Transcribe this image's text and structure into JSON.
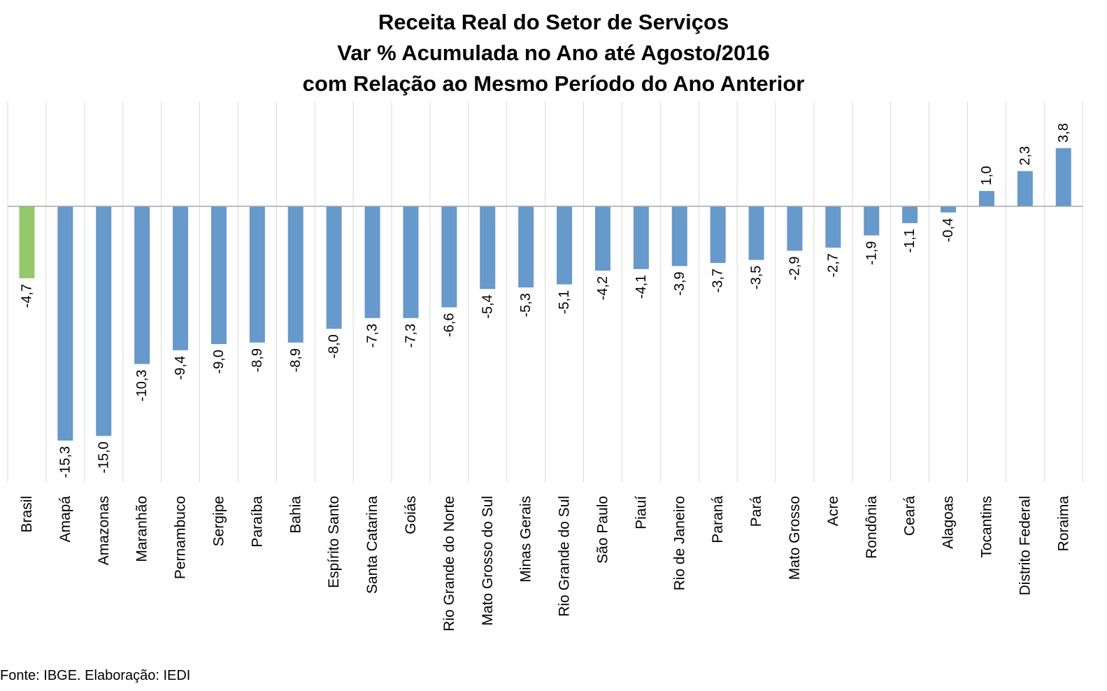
{
  "chart_data": {
    "type": "bar",
    "title": [
      "Receita Real do Setor de Serviços",
      "Var % Acumulada no Ano até Agosto/2016",
      "com Relação ao Mesmo Período do Ano Anterior"
    ],
    "xlabel": "",
    "ylabel": "",
    "ylim": [
      -18.0,
      6.8
    ],
    "grid": "vertical separators between categories",
    "legend": "none",
    "categories": [
      "Brasil",
      "Amapá",
      "Amazonas",
      "Maranhão",
      "Pernambuco",
      "Sergipe",
      "Paraíba",
      "Bahia",
      "Espírito Santo",
      "Santa Catarina",
      "Goiás",
      "Rio Grande do Norte",
      "Mato Grosso do Sul",
      "Minas Gerais",
      "Rio Grande do Sul",
      "São Paulo",
      "Piauí",
      "Rio de Janeiro",
      "Paraná",
      "Pará",
      "Mato Grosso",
      "Acre",
      "Rondônia",
      "Ceará",
      "Alagoas",
      "Tocantins",
      "Distrito Federal",
      "Roraima"
    ],
    "values": [
      -4.7,
      -15.3,
      -15.0,
      -10.3,
      -9.4,
      -9.0,
      -8.9,
      -8.9,
      -8.0,
      -7.3,
      -7.3,
      -6.6,
      -5.4,
      -5.3,
      -5.1,
      -4.2,
      -4.1,
      -3.9,
      -3.7,
      -3.5,
      -2.9,
      -2.7,
      -1.9,
      -1.1,
      -0.4,
      1.0,
      2.3,
      3.8
    ],
    "data_labels": [
      "-4,7",
      "-15,3",
      "-15,0",
      "-10,3",
      "-9,4",
      "-9,0",
      "-8,9",
      "-8,9",
      "-8,0",
      "-7,3",
      "-7,3",
      "-6,6",
      "-5,4",
      "-5,3",
      "-5,1",
      "-4,2",
      "-4,1",
      "-3,9",
      "-3,7",
      "-3,5",
      "-2,9",
      "-2,7",
      "-1,9",
      "-1,1",
      "-0,4",
      "1,0",
      "2,3",
      "3,8"
    ],
    "highlight_index": 0,
    "colors": {
      "bar": "#6699CC",
      "highlight_bar": "#92C96A",
      "axis": "#A6A6A6",
      "separator": "#D9D9D9"
    }
  },
  "source": "Fonte: IBGE. Elaboração: IEDI"
}
